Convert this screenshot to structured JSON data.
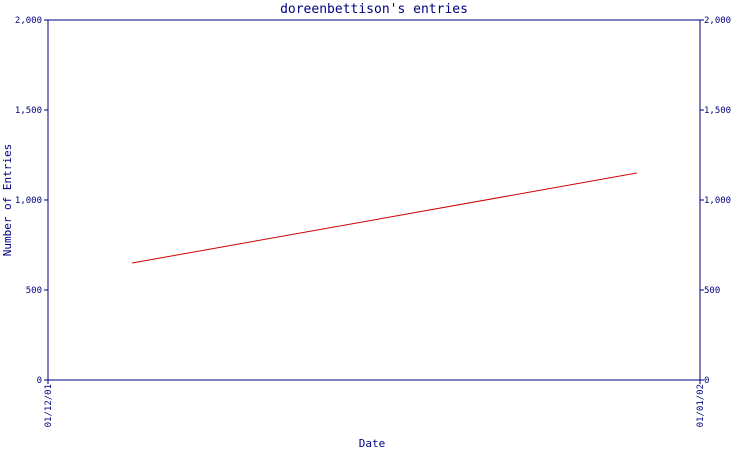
{
  "chart_data": {
    "type": "line",
    "title": "doreenbettison's entries",
    "xlabel": "Date",
    "ylabel": "Number of Entries",
    "x_tick_labels": [
      "01/12/01",
      "01/01/02"
    ],
    "y_tick_labels": [
      "0",
      "500",
      "1,000",
      "1,500",
      "2,000"
    ],
    "y_ticks": [
      0,
      500,
      1000,
      1500,
      2000
    ],
    "ylim": [
      0,
      2000
    ],
    "secondary_y_axis": true,
    "grid": false,
    "series": [
      {
        "x": [
          "2001-12-05",
          "2001-12-29"
        ],
        "y": [
          650,
          1150
        ],
        "color": "#cc0000"
      }
    ],
    "axis_color": "#000080"
  }
}
